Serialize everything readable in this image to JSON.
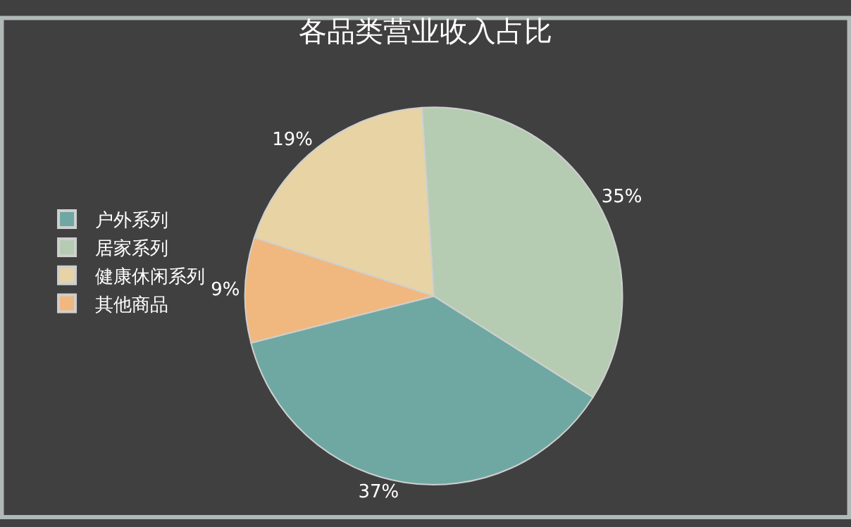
{
  "chart_data": {
    "type": "pie",
    "title": "各品类营业收入占比",
    "categories": [
      "户外系列",
      "居家系列",
      "健康休闲系列",
      "其他商品"
    ],
    "values": [
      37,
      35,
      19,
      9
    ],
    "colors": [
      "#6fa8a3",
      "#b5ccb3",
      "#e8d3a5",
      "#f0b87f"
    ],
    "value_labels": [
      "37%",
      "35%",
      "19%",
      "9%"
    ],
    "legend": "left"
  }
}
